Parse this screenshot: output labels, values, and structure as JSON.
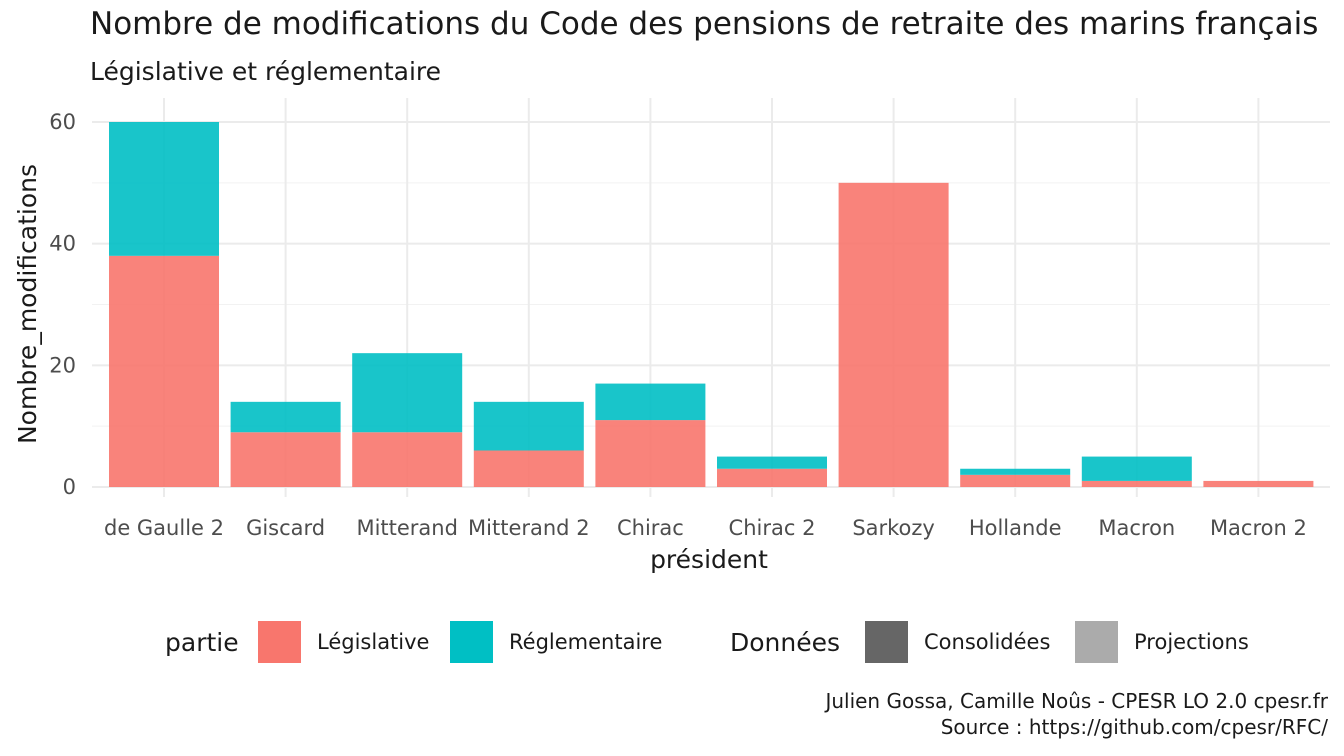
{
  "chart_data": {
    "type": "bar",
    "stacked": true,
    "title": "Nombre de modifications du Code des pensions de retraite des marins français",
    "subtitle": "Législative et réglementaire",
    "xlabel": "président",
    "ylabel": "Nombre_modifications",
    "ylim": [
      0,
      60
    ],
    "yticks": [
      "0",
      "20",
      "40",
      "60"
    ],
    "grid": true,
    "legend_position": "bottom",
    "categories": [
      "de Gaulle 2",
      "Giscard",
      "Mitterand",
      "Mitterand 2",
      "Chirac",
      "Chirac 2",
      "Sarkozy",
      "Hollande",
      "Macron",
      "Macron 2"
    ],
    "series": [
      {
        "name": "Législative",
        "color": "#F8766D",
        "values": [
          38,
          9,
          9,
          6,
          11,
          3,
          50,
          2,
          1,
          1
        ]
      },
      {
        "name": "Réglementaire",
        "color": "#00BFC4",
        "values": [
          22,
          5,
          13,
          8,
          6,
          2,
          0,
          1,
          4,
          0
        ]
      }
    ]
  },
  "legend": {
    "partie_title": "partie",
    "partie_items": [
      {
        "label": "Législative",
        "color": "#F8766D"
      },
      {
        "label": "Réglementaire",
        "color": "#00BFC4"
      }
    ],
    "donnees_title": "Données",
    "donnees_items": [
      {
        "label": "Consolidées",
        "color": "#666666"
      },
      {
        "label": "Projections",
        "color": "#ABABAB"
      }
    ]
  },
  "caption": {
    "line1": "Julien Gossa, Camille Noûs - CPESR LO 2.0 cpesr.fr",
    "line2": "Source : https://github.com/cpesr/RFC/"
  }
}
